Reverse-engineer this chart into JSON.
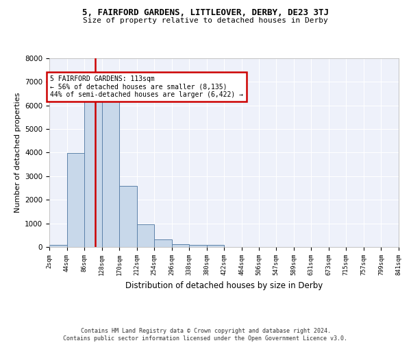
{
  "title1": "5, FAIRFORD GARDENS, LITTLEOVER, DERBY, DE23 3TJ",
  "title2": "Size of property relative to detached houses in Derby",
  "xlabel": "Distribution of detached houses by size in Derby",
  "ylabel": "Number of detached properties",
  "bin_edges": [
    2,
    44,
    86,
    128,
    170,
    212,
    254,
    296,
    338,
    380,
    422,
    464,
    506,
    547,
    589,
    631,
    673,
    715,
    757,
    799,
    841
  ],
  "bin_heights": [
    80,
    3980,
    6550,
    6550,
    2600,
    950,
    310,
    130,
    100,
    75,
    0,
    0,
    0,
    0,
    0,
    0,
    0,
    0,
    0,
    0
  ],
  "bar_facecolor": "#c8d8ea",
  "bar_edgecolor": "#5b80a8",
  "property_value": 113,
  "property_line_color": "#cc0000",
  "annotation_text": "5 FAIRFORD GARDENS: 113sqm\n← 56% of detached houses are smaller (8,135)\n44% of semi-detached houses are larger (6,422) →",
  "annotation_box_color": "#cc0000",
  "ylim": [
    0,
    8000
  ],
  "yticks": [
    0,
    1000,
    2000,
    3000,
    4000,
    5000,
    6000,
    7000,
    8000
  ],
  "background_color": "#eef1fa",
  "grid_color": "#ffffff",
  "footer1": "Contains HM Land Registry data © Crown copyright and database right 2024.",
  "footer2": "Contains public sector information licensed under the Open Government Licence v3.0.",
  "tick_labels": [
    "2sqm",
    "44sqm",
    "86sqm",
    "128sqm",
    "170sqm",
    "212sqm",
    "254sqm",
    "296sqm",
    "338sqm",
    "380sqm",
    "422sqm",
    "464sqm",
    "506sqm",
    "547sqm",
    "589sqm",
    "631sqm",
    "673sqm",
    "715sqm",
    "757sqm",
    "799sqm",
    "841sqm"
  ]
}
